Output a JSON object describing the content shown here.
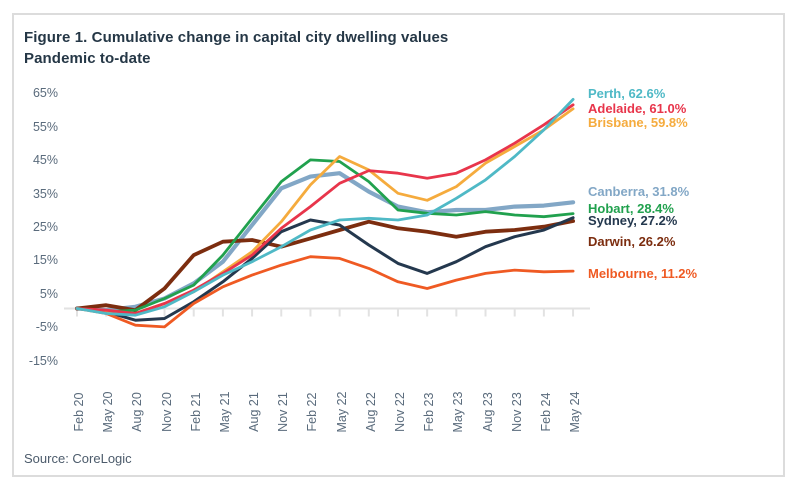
{
  "figure": {
    "title": "Figure 1. Cumulative change in capital city dwelling values",
    "subtitle": "Pandemic to-date",
    "source": "Source: CoreLogic"
  },
  "chart_data": {
    "type": "line",
    "title": "Figure 1. Cumulative change in capital city dwelling values",
    "subtitle": "Pandemic to-date",
    "source": "Source: CoreLogic",
    "x_categories": [
      "Feb 20",
      "May 20",
      "Aug 20",
      "Nov 20",
      "Feb 21",
      "May 21",
      "Aug 21",
      "Nov 21",
      "Feb 22",
      "May 22",
      "Aug 22",
      "Nov 22",
      "Feb 23",
      "May 23",
      "Aug 23",
      "Nov 23",
      "Feb 24",
      "May 24"
    ],
    "y_axis": {
      "unit": "%",
      "ticks": [
        65,
        55,
        45,
        35,
        25,
        15,
        5,
        -5,
        -15
      ],
      "min": -15,
      "max": 65,
      "baseline_at_zero": true,
      "gridlines": false,
      "axis_line_color": "#e2e2e2"
    },
    "x_axis": {
      "label_rotation_deg": 90,
      "tick_interval": "quarterly"
    },
    "legend_position": "right-end-labels",
    "series": [
      {
        "name": "Perth",
        "label": "Perth, 62.6%",
        "final_value": 62.6,
        "color": "#4fb9c6",
        "values": [
          0,
          -1.5,
          -2,
          0.5,
          5,
          10,
          14,
          18.5,
          23.5,
          26.5,
          27,
          26.5,
          28,
          33,
          38.5,
          45.5,
          53.5,
          62.6
        ]
      },
      {
        "name": "Adelaide",
        "label": "Adelaide, 61.0%",
        "final_value": 61.0,
        "color": "#e8354b",
        "values": [
          0,
          -0.5,
          -1.5,
          1.5,
          5.5,
          10.5,
          16,
          24,
          30.5,
          37.5,
          41.3,
          40.5,
          39,
          40.5,
          44.5,
          49.5,
          55,
          61.0
        ]
      },
      {
        "name": "Brisbane",
        "label": "Brisbane, 59.8%",
        "final_value": 59.8,
        "color": "#f5ab3d",
        "values": [
          0,
          -1,
          -1.5,
          1.5,
          5,
          11,
          17,
          26,
          37,
          45.5,
          41.5,
          34.5,
          32.4,
          36.5,
          43.5,
          48.5,
          53.5,
          59.8
        ]
      },
      {
        "name": "Canberra",
        "label": "Canberra, 31.8%",
        "final_value": 31.8,
        "color": "#82a7c6",
        "values": [
          0,
          -0.5,
          0.5,
          3,
          7.5,
          14,
          25,
          36,
          39.5,
          40.5,
          35,
          30.5,
          28.8,
          29.5,
          29.5,
          30.5,
          30.8,
          31.8
        ]
      },
      {
        "name": "Hobart",
        "label": "Hobart, 28.4%",
        "final_value": 28.4,
        "color": "#21a14e",
        "values": [
          0,
          -1,
          -0.5,
          3,
          7,
          16,
          27,
          38,
          44.5,
          44,
          38,
          29.5,
          28.5,
          28,
          29,
          28,
          27.5,
          28.4
        ]
      },
      {
        "name": "Sydney",
        "label": "Sydney, 27.2%",
        "final_value": 27.2,
        "color": "#24384e",
        "values": [
          0,
          -1,
          -3.5,
          -3,
          2,
          8,
          15,
          23,
          26.5,
          25,
          19,
          13.5,
          10.5,
          14,
          18.5,
          21.5,
          23.5,
          27.2
        ]
      },
      {
        "name": "Darwin",
        "label": "Darwin, 26.2%",
        "final_value": 26.2,
        "color": "#7c2d0f",
        "values": [
          0,
          1,
          -0.5,
          6,
          16,
          20,
          20.5,
          18.5,
          21,
          23.5,
          26,
          24,
          23,
          21.5,
          23,
          23.5,
          24.5,
          26.2
        ]
      },
      {
        "name": "Melbourne",
        "label": "Melbourne, 11.2%",
        "final_value": 11.2,
        "color": "#ef5a23",
        "values": [
          0,
          -1.5,
          -5,
          -5.5,
          1.5,
          6.5,
          10,
          13,
          15.5,
          15,
          12,
          8,
          6,
          8.5,
          10.5,
          11.5,
          11,
          11.2
        ]
      }
    ]
  }
}
